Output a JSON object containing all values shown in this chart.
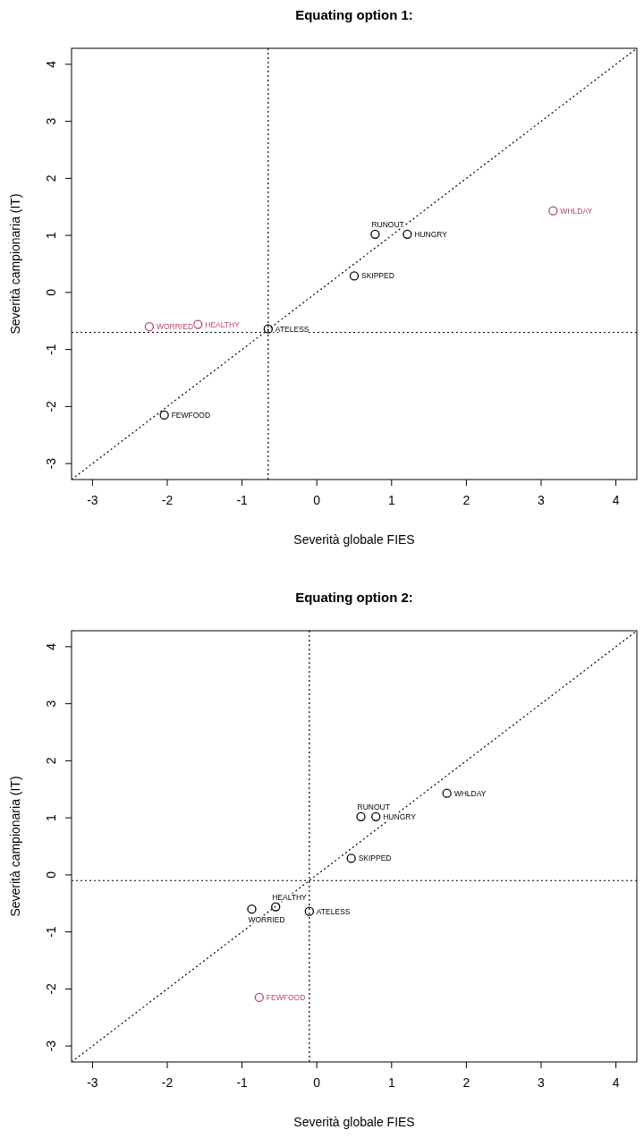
{
  "chart_data": [
    {
      "type": "scatter",
      "title": "Equating option 1:",
      "xlabel": "Severità globale FIES",
      "ylabel": "Severità campionaria (IT)",
      "xlim": [
        -3.28,
        4.28
      ],
      "ylim": [
        -3.28,
        4.28
      ],
      "xticks": [
        -3,
        -2,
        -1,
        0,
        1,
        2,
        3,
        4
      ],
      "yticks": [
        -3,
        -2,
        -1,
        0,
        1,
        2,
        3,
        4
      ],
      "grid": false,
      "marker": "circle",
      "series": [
        {
          "color": "#000000",
          "x": [
            -0.65,
            -2.04,
            0.5,
            0.78,
            1.21
          ],
          "values": [
            -0.64,
            -2.15,
            0.29,
            1.02,
            1.02
          ]
        },
        {
          "color": "#b5475d",
          "x": [
            -2.24,
            -1.59,
            3.16
          ],
          "values": [
            -0.6,
            -0.56,
            1.43
          ]
        },
        {
          "type": "line",
          "color": "#000000",
          "line_style": "dotted",
          "marker": "none",
          "x": [
            -3.28,
            4.28
          ],
          "values": [
            -3.28,
            4.28
          ]
        }
      ],
      "ref_lines": [
        {
          "axis": "x",
          "value": -0.65,
          "line_style": "dotted",
          "color": "#000000"
        },
        {
          "axis": "y",
          "value": -0.7,
          "line_style": "dotted",
          "color": "#000000"
        }
      ],
      "annotations": [
        {
          "text": "ATELESS",
          "x": -0.65,
          "y": -0.64
        },
        {
          "text": "FEWFOOD",
          "x": -2.04,
          "y": -2.15
        },
        {
          "text": "SKIPPED",
          "x": 0.5,
          "y": 0.29
        },
        {
          "text": "RUNOUT",
          "x": 0.78,
          "y": 1.02
        },
        {
          "text": "HUNGRY",
          "x": 1.21,
          "y": 1.02
        },
        {
          "text": "WORRIED",
          "x": -2.24,
          "y": -0.6
        },
        {
          "text": "HEALTHY",
          "x": -1.59,
          "y": -0.56
        },
        {
          "text": "WHLDAY",
          "x": 3.16,
          "y": 1.43
        }
      ]
    },
    {
      "type": "scatter",
      "title": "Equating option 2:",
      "xlabel": "Severità globale FIES",
      "ylabel": "Severità campionaria (IT)",
      "xlim": [
        -3.28,
        4.28
      ],
      "ylim": [
        -3.28,
        4.28
      ],
      "xticks": [
        -3,
        -2,
        -1,
        0,
        1,
        2,
        3,
        4
      ],
      "yticks": [
        -3,
        -2,
        -1,
        0,
        1,
        2,
        3,
        4
      ],
      "grid": false,
      "marker": "circle",
      "series": [
        {
          "color": "#000000",
          "x": [
            -0.87,
            -0.55,
            -0.1,
            0.46,
            0.59,
            0.79,
            1.74
          ],
          "values": [
            -0.6,
            -0.56,
            -0.64,
            0.29,
            1.02,
            1.02,
            1.43
          ]
        },
        {
          "color": "#b5475d",
          "x": [
            -0.77
          ],
          "values": [
            -2.15
          ]
        },
        {
          "type": "line",
          "color": "#000000",
          "line_style": "dotted",
          "marker": "none",
          "x": [
            -3.28,
            4.28
          ],
          "values": [
            -3.28,
            4.28
          ]
        }
      ],
      "ref_lines": [
        {
          "axis": "x",
          "value": -0.1,
          "line_style": "dotted",
          "color": "#000000"
        },
        {
          "axis": "y",
          "value": -0.1,
          "line_style": "dotted",
          "color": "#000000"
        }
      ],
      "annotations": [
        {
          "text": "WORRIED",
          "x": -0.87,
          "y": -0.6
        },
        {
          "text": "HEALTHY",
          "x": -0.55,
          "y": -0.56
        },
        {
          "text": "ATELESS",
          "x": -0.1,
          "y": -0.64
        },
        {
          "text": "SKIPPED",
          "x": 0.46,
          "y": 0.29
        },
        {
          "text": "RUNOUT",
          "x": 0.59,
          "y": 1.02
        },
        {
          "text": "HUNGRY",
          "x": 0.79,
          "y": 1.02
        },
        {
          "text": "WHLDAY",
          "x": 1.74,
          "y": 1.43
        },
        {
          "text": "FEWFOOD",
          "x": -0.77,
          "y": -2.15
        }
      ]
    }
  ]
}
